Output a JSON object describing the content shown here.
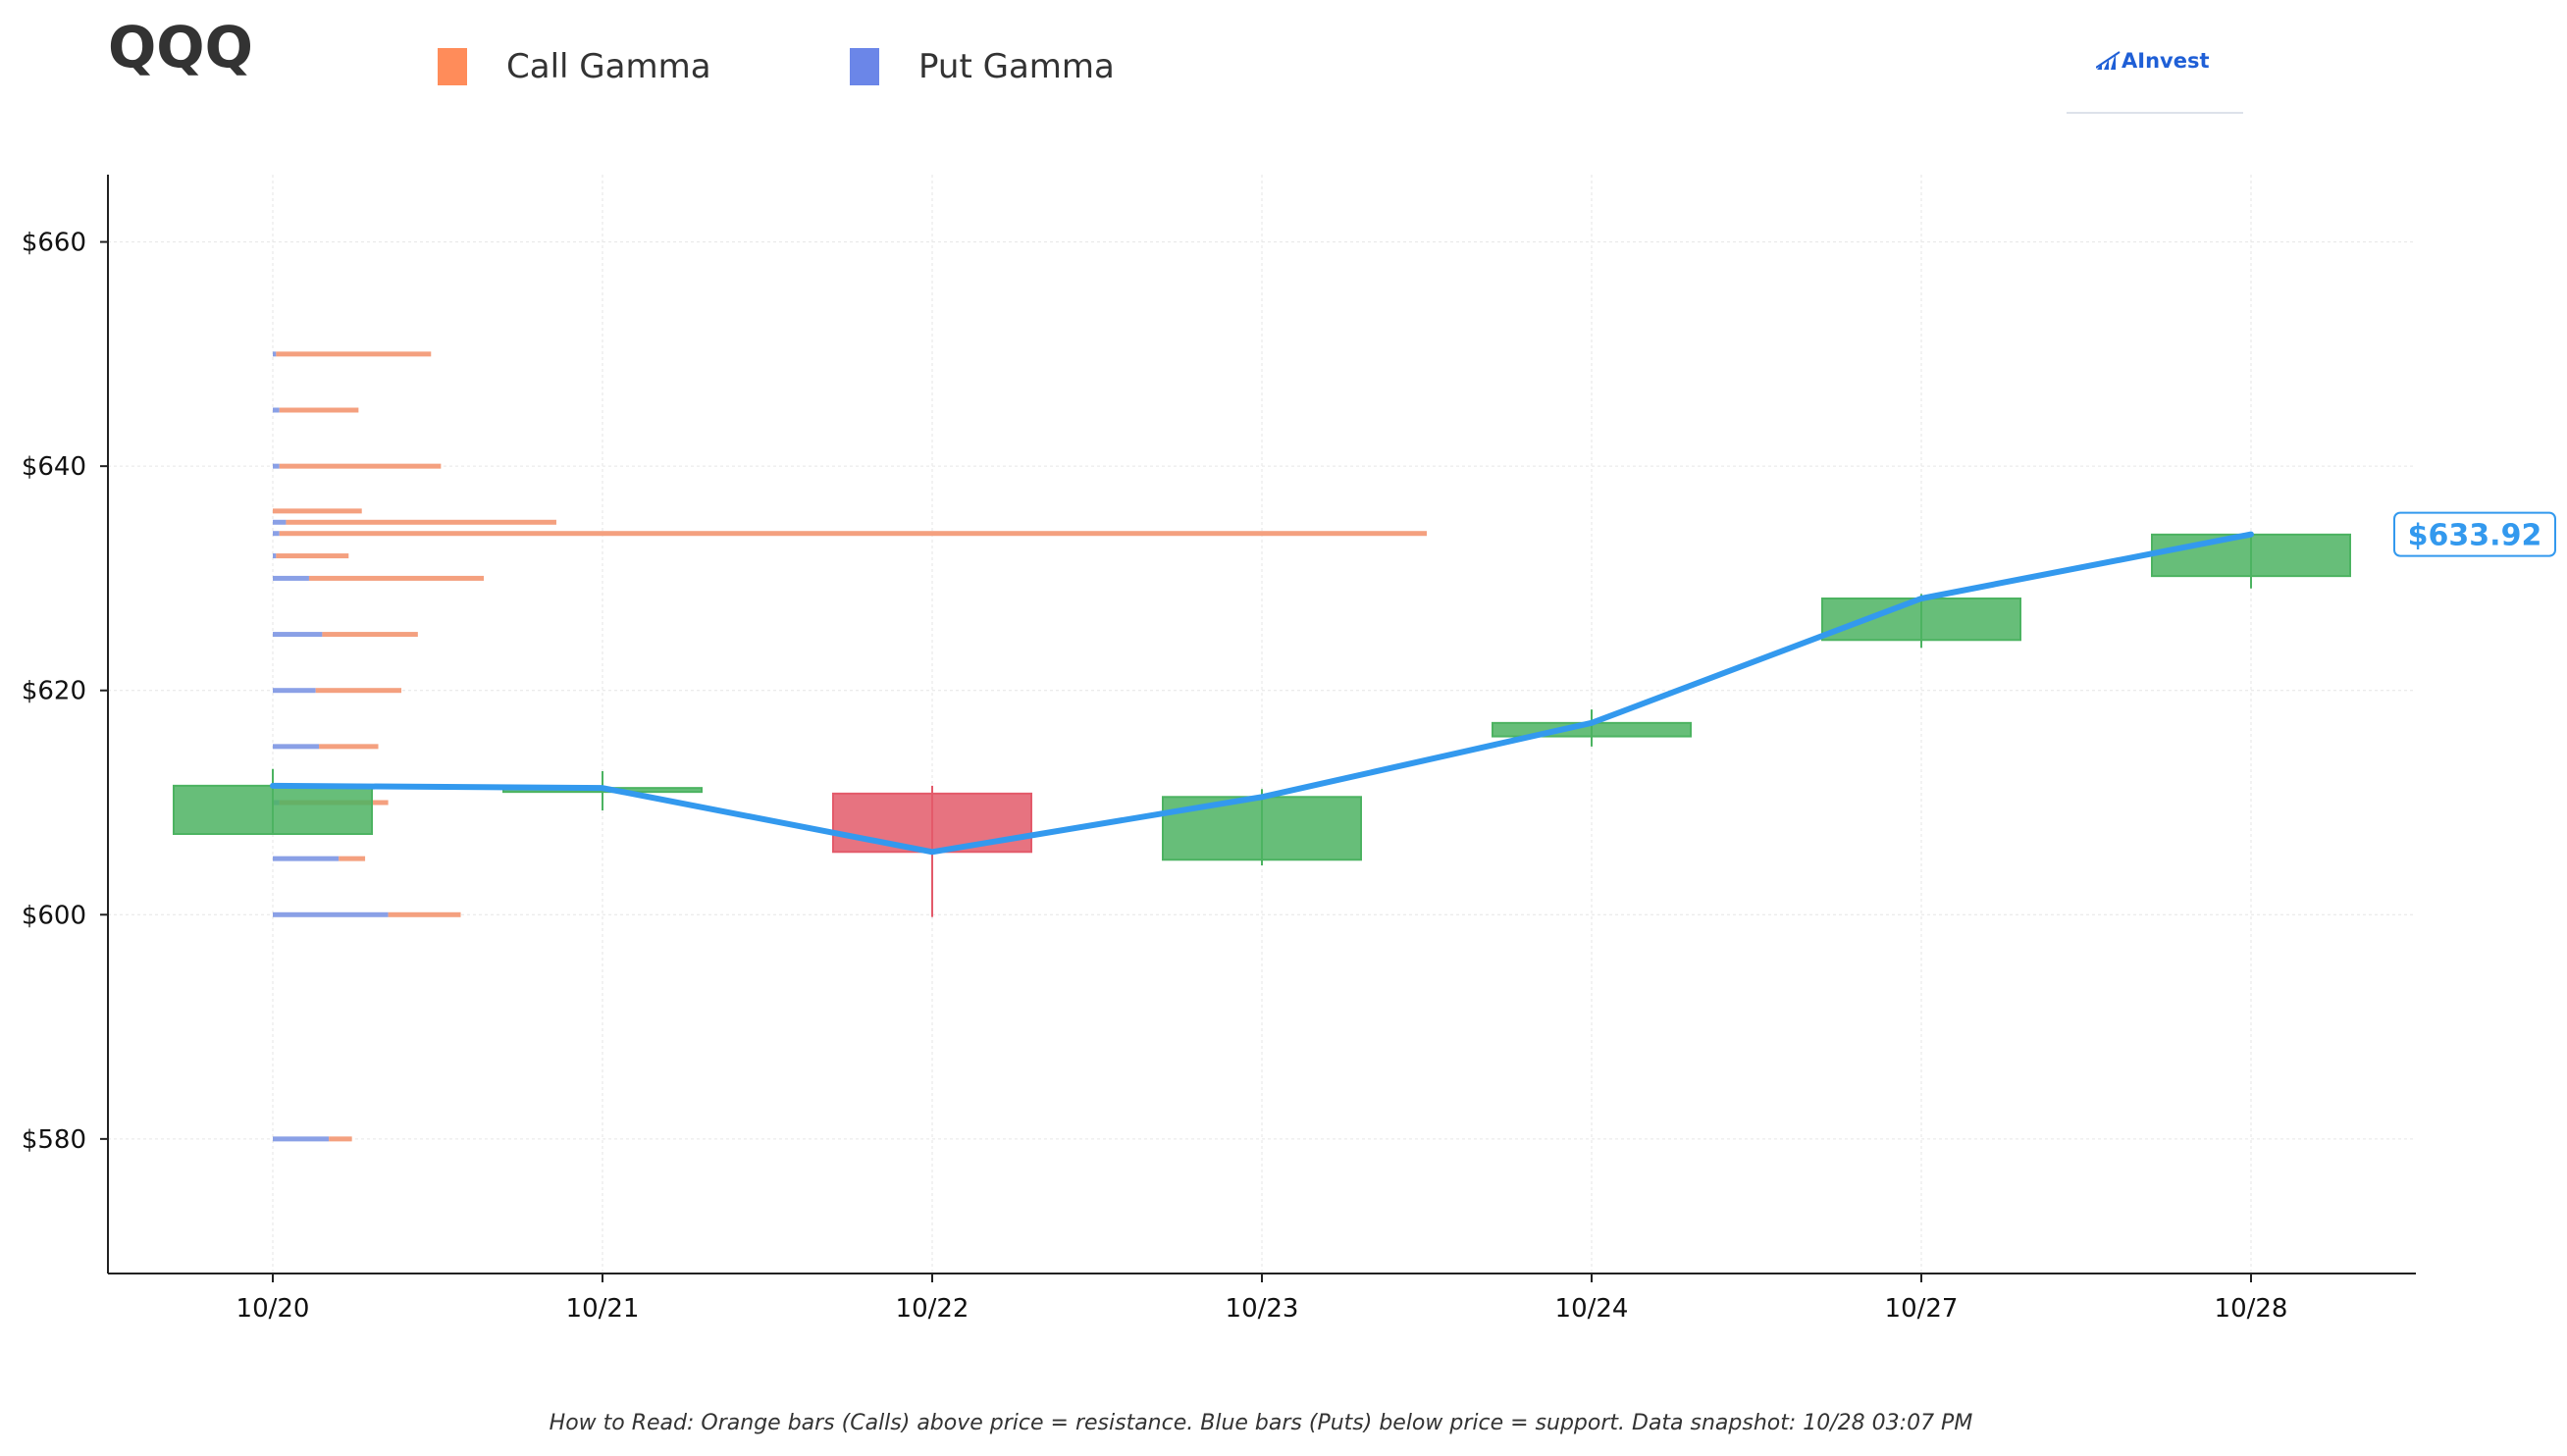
{
  "header": {
    "ticker": "QQQ",
    "brand": "AInvest"
  },
  "legend": [
    {
      "label": "Call Gamma",
      "color": "#ff8c5a"
    },
    {
      "label": "Put Gamma",
      "color": "#6b86e8"
    }
  ],
  "footnote": "How to Read: Orange bars (Calls) above price = resistance. Blue bars (Puts) below price = support. Data snapshot: 10/28 03:07 PM",
  "colors": {
    "up": "#4cb361",
    "down": "#e35a6a",
    "price_line": "#3399ee",
    "call": "#f4a07f",
    "put": "#8aa0e6"
  },
  "chart_data": {
    "type": "candlestick",
    "categories": [
      "10/20",
      "10/21",
      "10/22",
      "10/23",
      "10/24",
      "10/27",
      "10/28"
    ],
    "ylim": [
      568,
      666
    ],
    "yticks": [
      580,
      600,
      620,
      640,
      660
    ],
    "ytick_labels": [
      "$580",
      "$600",
      "$620",
      "$640",
      "$660"
    ],
    "grid": true,
    "candles": [
      {
        "date": "10/20",
        "open": 607.2,
        "high": 613.0,
        "low": 607.2,
        "close": 611.5
      },
      {
        "date": "10/21",
        "open": 611.3,
        "high": 612.8,
        "low": 609.3,
        "close": 611.3
      },
      {
        "date": "10/22",
        "open": 610.8,
        "high": 611.5,
        "low": 599.8,
        "close": 605.6
      },
      {
        "date": "10/23",
        "open": 604.9,
        "high": 611.2,
        "low": 604.4,
        "close": 610.5
      },
      {
        "date": "10/24",
        "open": 615.9,
        "high": 618.3,
        "low": 615.0,
        "close": 617.1
      },
      {
        "date": "10/27",
        "open": 624.5,
        "high": 628.6,
        "low": 623.8,
        "close": 628.2
      },
      {
        "date": "10/28",
        "open": 630.2,
        "high": 633.9,
        "low": 629.1,
        "close": 633.9
      }
    ],
    "price_line": {
      "x": [
        "10/20",
        "10/21",
        "10/22",
        "10/23",
        "10/24",
        "10/27",
        "10/28"
      ],
      "y": [
        611.5,
        611.3,
        605.6,
        610.5,
        617.1,
        628.2,
        633.92
      ]
    },
    "last_price_label": "$633.92",
    "gamma_bars": [
      {
        "strike": 650,
        "put": 0.01,
        "call": 0.47
      },
      {
        "strike": 645,
        "put": 0.02,
        "call": 0.24
      },
      {
        "strike": 640,
        "put": 0.02,
        "call": 0.49
      },
      {
        "strike": 636,
        "put": 0.0,
        "call": 0.27
      },
      {
        "strike": 635,
        "put": 0.04,
        "call": 0.82
      },
      {
        "strike": 634,
        "put": 0.02,
        "call": 3.48
      },
      {
        "strike": 632,
        "put": 0.01,
        "call": 0.22
      },
      {
        "strike": 630,
        "put": 0.11,
        "call": 0.53
      },
      {
        "strike": 625,
        "put": 0.15,
        "call": 0.29
      },
      {
        "strike": 620,
        "put": 0.13,
        "call": 0.26
      },
      {
        "strike": 615,
        "put": 0.14,
        "call": 0.18
      },
      {
        "strike": 610,
        "put": 0.02,
        "call": 0.33
      },
      {
        "strike": 605,
        "put": 0.2,
        "call": 0.08
      },
      {
        "strike": 600,
        "put": 0.35,
        "call": 0.22
      },
      {
        "strike": 580,
        "put": 0.17,
        "call": 0.07
      }
    ]
  }
}
